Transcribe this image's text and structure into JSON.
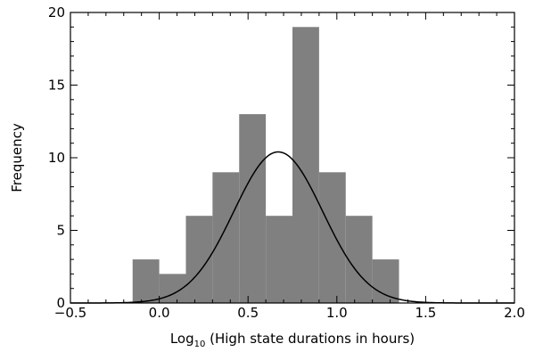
{
  "chart_data": {
    "type": "bar",
    "xlabel_prefix": "Log",
    "xlabel_sub": "10",
    "xlabel_rest": " (High state durations in hours)",
    "ylabel": "Frequency",
    "xlim": [
      -0.5,
      2.0
    ],
    "ylim": [
      0,
      20
    ],
    "x_ticks": [
      -0.5,
      0.0,
      0.5,
      1.0,
      1.5,
      2.0
    ],
    "x_tick_labels": [
      "−0.5",
      "0.0",
      "0.5",
      "1.0",
      "1.5",
      "2.0"
    ],
    "y_ticks": [
      0,
      5,
      10,
      15,
      20
    ],
    "y_tick_labels": [
      "0",
      "5",
      "10",
      "15",
      "20"
    ],
    "bin_width": 0.15,
    "bins": [
      {
        "x0": -0.15,
        "x1": 0.0,
        "value": 3
      },
      {
        "x0": 0.0,
        "x1": 0.15,
        "value": 2
      },
      {
        "x0": 0.15,
        "x1": 0.3,
        "value": 6
      },
      {
        "x0": 0.3,
        "x1": 0.45,
        "value": 9
      },
      {
        "x0": 0.45,
        "x1": 0.6,
        "value": 13
      },
      {
        "x0": 0.6,
        "x1": 0.75,
        "value": 6
      },
      {
        "x0": 0.75,
        "x1": 0.9,
        "value": 19
      },
      {
        "x0": 0.9,
        "x1": 1.05,
        "value": 9
      },
      {
        "x0": 1.05,
        "x1": 1.2,
        "value": 6
      },
      {
        "x0": 1.2,
        "x1": 1.35,
        "value": 3
      }
    ],
    "fit_curve": {
      "type": "gaussian",
      "mean": 0.67,
      "sigma": 0.25,
      "peak": 10.4
    },
    "bar_color": "#808080",
    "curve_color": "#000000",
    "grid": false
  }
}
